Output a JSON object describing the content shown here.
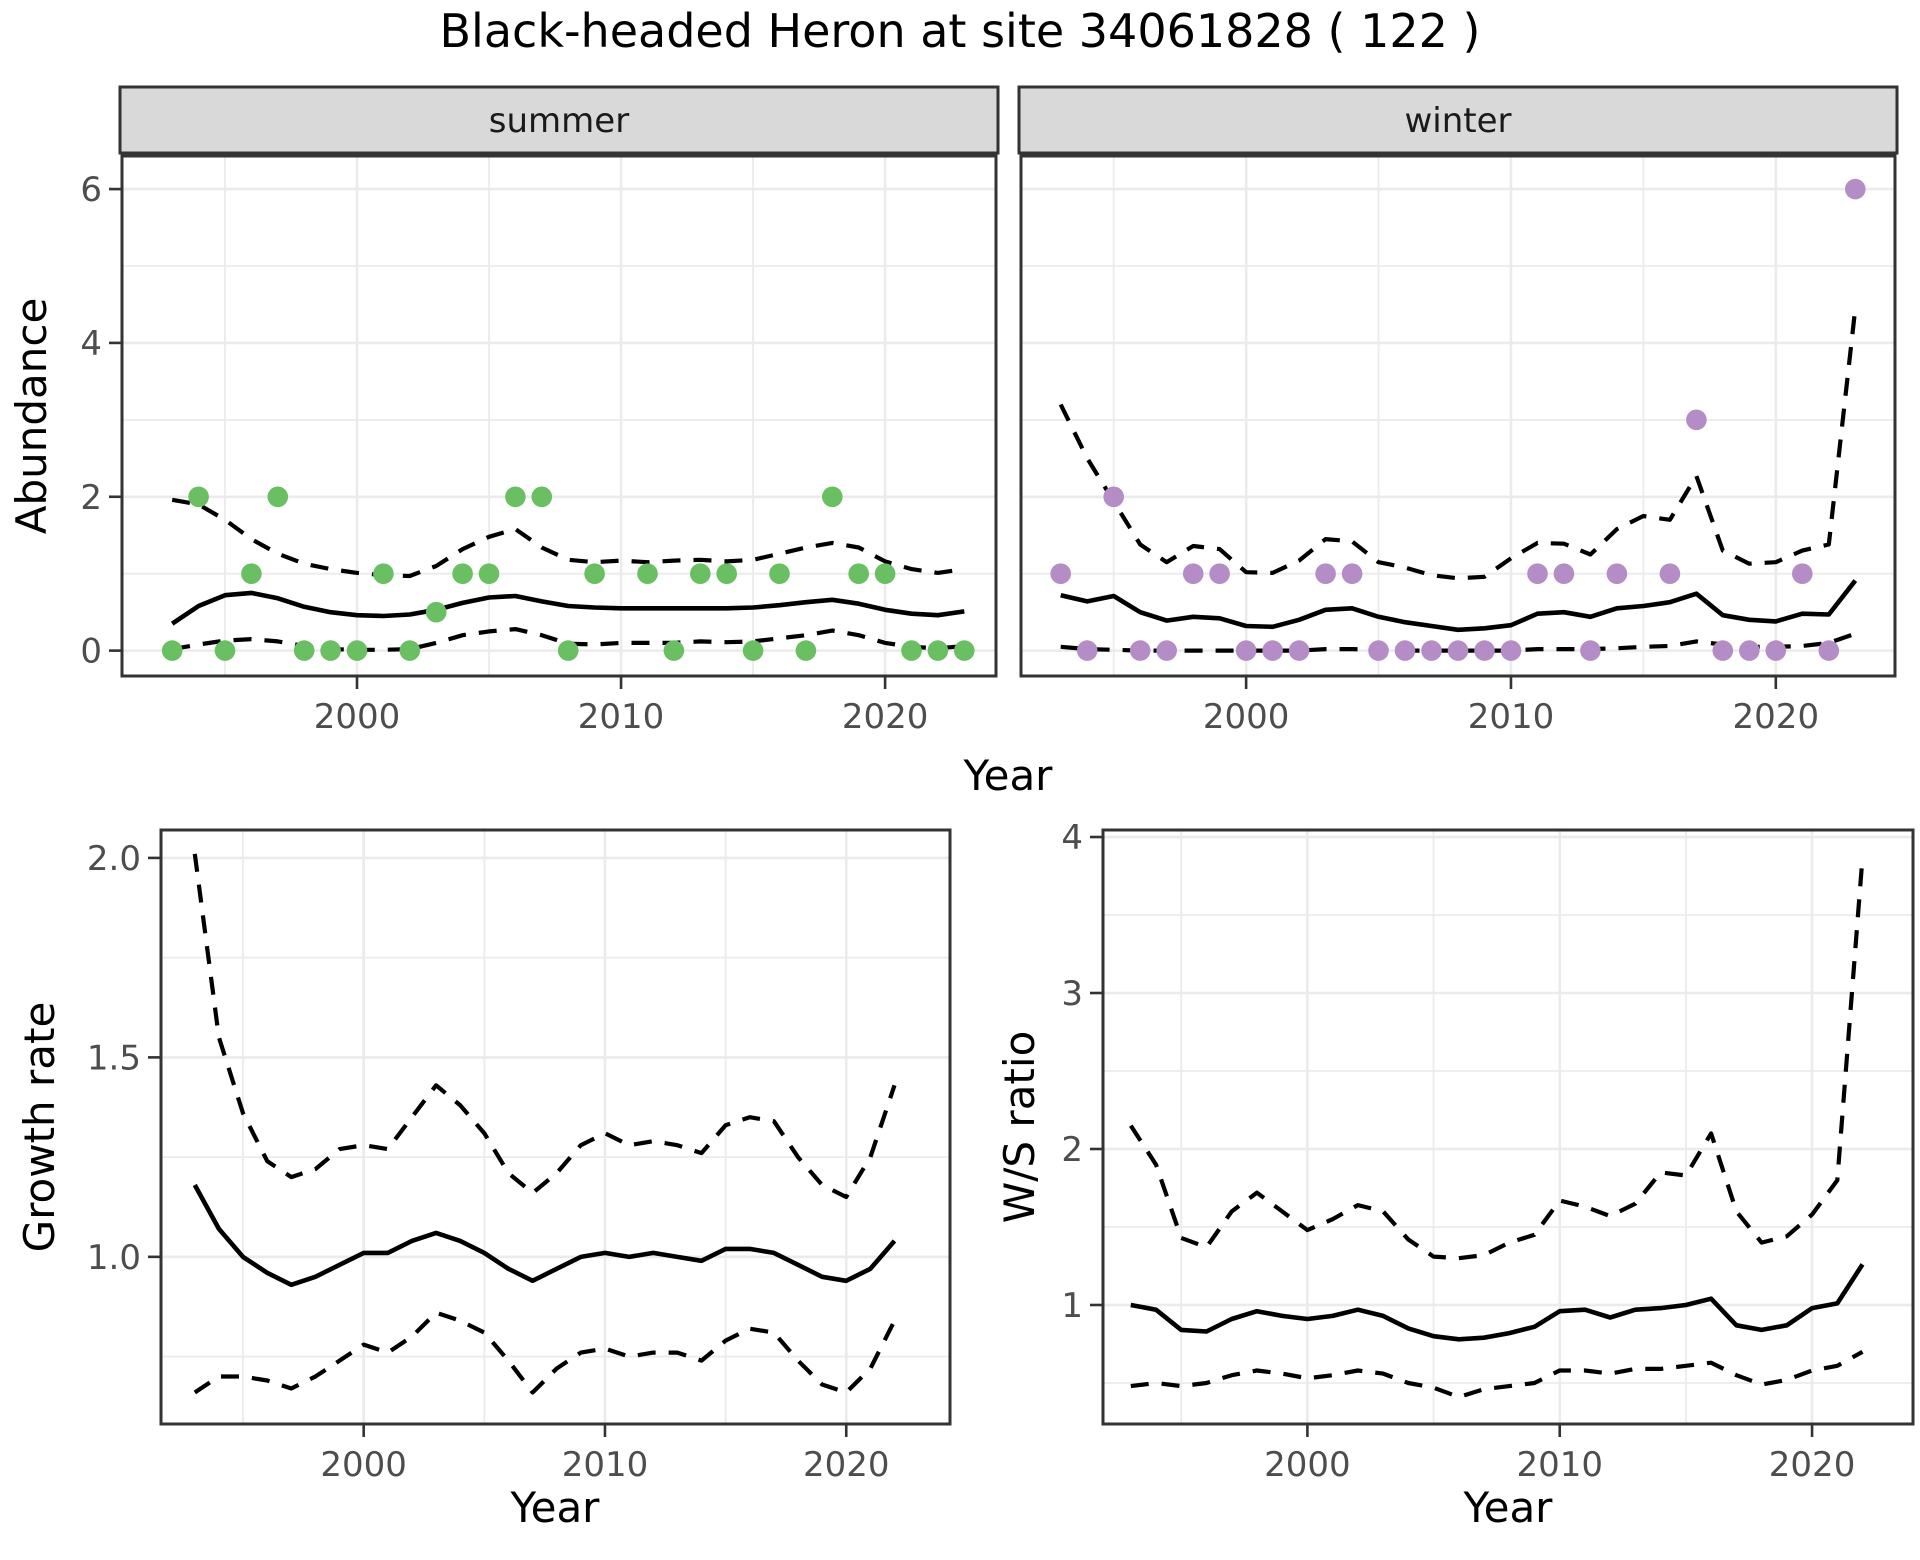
{
  "title": "Black-headed Heron at site 34061828 ( 122 )",
  "colors": {
    "summer_point": "#6abf63",
    "winter_point": "#b48dc7",
    "line": "#000000",
    "grid": "#ebebeb",
    "panel_border": "#333333",
    "strip_fill": "#d9d9d9",
    "strip_text": "#1a1a1a",
    "tick_text": "#4d4d4d",
    "axis_title_text": "#000000",
    "background": "#ffffff"
  },
  "chart_data": [
    {
      "type": "line",
      "name": "summer-abundance",
      "strip": "summer",
      "xlabel": "Year",
      "ylabel": "Abundance",
      "legend_position": "none",
      "grid": true,
      "xlim": [
        1991.1,
        2024.2
      ],
      "ylim": [
        -0.33,
        6.43
      ],
      "xticks": [
        2000,
        2010,
        2020
      ],
      "xtick_labels": [
        "2000",
        "2010",
        "2020"
      ],
      "xminor": [
        1995,
        2005,
        2015
      ],
      "yticks": [
        0,
        2,
        4,
        6
      ],
      "ytick_labels": [
        "0",
        "2",
        "4",
        "6"
      ],
      "yminor": [
        1,
        3,
        5
      ],
      "years": [
        1993,
        1994,
        1995,
        1996,
        1997,
        1998,
        1999,
        2000,
        2001,
        2002,
        2003,
        2004,
        2005,
        2006,
        2007,
        2008,
        2009,
        2010,
        2011,
        2012,
        2013,
        2014,
        2015,
        2016,
        2017,
        2018,
        2019,
        2020,
        2021,
        2022,
        2023
      ],
      "series": [
        {
          "name": "mean",
          "style": "solid",
          "values": [
            0.35,
            0.58,
            0.72,
            0.75,
            0.68,
            0.57,
            0.5,
            0.46,
            0.45,
            0.47,
            0.53,
            0.62,
            0.69,
            0.71,
            0.64,
            0.58,
            0.56,
            0.55,
            0.55,
            0.55,
            0.55,
            0.55,
            0.56,
            0.59,
            0.63,
            0.66,
            0.61,
            0.53,
            0.48,
            0.46,
            0.51
          ]
        },
        {
          "name": "upper-ci",
          "style": "dashed",
          "values": [
            1.96,
            1.9,
            1.7,
            1.45,
            1.26,
            1.13,
            1.06,
            1.01,
            0.98,
            0.97,
            1.1,
            1.32,
            1.48,
            1.58,
            1.34,
            1.18,
            1.15,
            1.17,
            1.15,
            1.17,
            1.18,
            1.16,
            1.18,
            1.26,
            1.34,
            1.4,
            1.34,
            1.16,
            1.06,
            1.01,
            1.06
          ]
        },
        {
          "name": "lower-ci",
          "style": "dashed",
          "values": [
            0.02,
            0.08,
            0.13,
            0.15,
            0.12,
            0.06,
            0.02,
            0.01,
            0.01,
            0.02,
            0.1,
            0.2,
            0.25,
            0.28,
            0.2,
            0.09,
            0.08,
            0.1,
            0.1,
            0.1,
            0.12,
            0.11,
            0.12,
            0.16,
            0.2,
            0.26,
            0.2,
            0.1,
            0.05,
            0.03,
            0.06
          ]
        }
      ],
      "points": [
        [
          1993,
          0
        ],
        [
          1994,
          2
        ],
        [
          1995,
          0
        ],
        [
          1996,
          1
        ],
        [
          1997,
          2
        ],
        [
          1998,
          0
        ],
        [
          1999,
          0
        ],
        [
          2000,
          0
        ],
        [
          2001,
          1
        ],
        [
          2002,
          0
        ],
        [
          2003,
          0.5
        ],
        [
          2004,
          1
        ],
        [
          2005,
          1
        ],
        [
          2006,
          2
        ],
        [
          2007,
          2
        ],
        [
          2008,
          0
        ],
        [
          2009,
          1
        ],
        [
          2011,
          1
        ],
        [
          2012,
          0
        ],
        [
          2013,
          1
        ],
        [
          2014,
          1
        ],
        [
          2015,
          0
        ],
        [
          2016,
          1
        ],
        [
          2017,
          0
        ],
        [
          2018,
          2
        ],
        [
          2019,
          1
        ],
        [
          2020,
          1
        ],
        [
          2021,
          0
        ],
        [
          2022,
          0
        ],
        [
          2023,
          0
        ]
      ],
      "point_color": "#6abf63"
    },
    {
      "type": "line",
      "name": "winter-abundance",
      "strip": "winter",
      "xlabel": "Year",
      "ylabel": "",
      "legend_position": "none",
      "grid": true,
      "xlim": [
        1991.5,
        2024.5
      ],
      "ylim": [
        -0.33,
        6.43
      ],
      "xticks": [
        2000,
        2010,
        2020
      ],
      "xtick_labels": [
        "2000",
        "2010",
        "2020"
      ],
      "xminor": [
        1995,
        2005,
        2015
      ],
      "yticks": [
        0,
        2,
        4,
        6
      ],
      "ytick_labels": [],
      "yminor": [
        1,
        3,
        5
      ],
      "years": [
        1993,
        1994,
        1995,
        1996,
        1997,
        1998,
        1999,
        2000,
        2001,
        2002,
        2003,
        2004,
        2005,
        2006,
        2007,
        2008,
        2009,
        2010,
        2011,
        2012,
        2013,
        2014,
        2015,
        2016,
        2017,
        2018,
        2019,
        2020,
        2021,
        2022,
        2023
      ],
      "series": [
        {
          "name": "mean",
          "style": "solid",
          "values": [
            0.72,
            0.64,
            0.71,
            0.5,
            0.39,
            0.44,
            0.42,
            0.32,
            0.31,
            0.4,
            0.53,
            0.55,
            0.44,
            0.37,
            0.32,
            0.27,
            0.29,
            0.33,
            0.48,
            0.5,
            0.44,
            0.55,
            0.58,
            0.63,
            0.74,
            0.46,
            0.4,
            0.38,
            0.48,
            0.47,
            0.91
          ]
        },
        {
          "name": "upper-ci",
          "style": "dashed",
          "values": [
            3.2,
            2.5,
            1.94,
            1.38,
            1.15,
            1.36,
            1.32,
            1.02,
            1.01,
            1.17,
            1.45,
            1.42,
            1.15,
            1.08,
            0.98,
            0.94,
            0.96,
            1.2,
            1.4,
            1.39,
            1.25,
            1.58,
            1.75,
            1.7,
            2.27,
            1.3,
            1.13,
            1.15,
            1.3,
            1.38,
            4.45
          ]
        },
        {
          "name": "lower-ci",
          "style": "dashed",
          "values": [
            0.05,
            0.02,
            0.01,
            0,
            0,
            0,
            0,
            0,
            0,
            0,
            0.02,
            0.02,
            0.01,
            0,
            0,
            0,
            0,
            0,
            0.02,
            0.02,
            0.02,
            0.03,
            0.05,
            0.06,
            0.12,
            0.08,
            0.05,
            0.05,
            0.06,
            0.1,
            0.22
          ]
        }
      ],
      "points": [
        [
          1993,
          1
        ],
        [
          1994,
          0
        ],
        [
          1995,
          2
        ],
        [
          1996,
          0
        ],
        [
          1997,
          0
        ],
        [
          1998,
          1
        ],
        [
          1999,
          1
        ],
        [
          2000,
          0
        ],
        [
          2001,
          0
        ],
        [
          2002,
          0
        ],
        [
          2003,
          1
        ],
        [
          2004,
          1
        ],
        [
          2005,
          0
        ],
        [
          2006,
          0
        ],
        [
          2007,
          0
        ],
        [
          2008,
          0
        ],
        [
          2009,
          0
        ],
        [
          2010,
          0
        ],
        [
          2011,
          1
        ],
        [
          2012,
          1
        ],
        [
          2013,
          0
        ],
        [
          2014,
          1
        ],
        [
          2016,
          1
        ],
        [
          2017,
          3
        ],
        [
          2018,
          0
        ],
        [
          2019,
          0
        ],
        [
          2020,
          0
        ],
        [
          2021,
          1
        ],
        [
          2022,
          0
        ],
        [
          2023,
          6
        ]
      ],
      "point_color": "#b48dc7"
    },
    {
      "type": "line",
      "name": "growth-rate",
      "strip": "",
      "xlabel": "Year",
      "ylabel": "Growth rate",
      "legend_position": "none",
      "grid": true,
      "xlim": [
        1991.6,
        2024.3
      ],
      "ylim": [
        0.581,
        2.07
      ],
      "xticks": [
        2000,
        2010,
        2020
      ],
      "xtick_labels": [
        "2000",
        "2010",
        "2020"
      ],
      "xminor": [
        1995,
        2005,
        2015
      ],
      "yticks": [
        1.0,
        1.5,
        2.0
      ],
      "ytick_labels": [
        "1.0",
        "1.5",
        "2.0"
      ],
      "yminor": [
        0.75,
        1.25,
        1.75
      ],
      "years": [
        1993,
        1994,
        1995,
        1996,
        1997,
        1998,
        1999,
        2000,
        2001,
        2002,
        2003,
        2004,
        2005,
        2006,
        2007,
        2008,
        2009,
        2010,
        2011,
        2012,
        2013,
        2014,
        2015,
        2016,
        2017,
        2018,
        2019,
        2020,
        2021,
        2022
      ],
      "series": [
        {
          "name": "mean",
          "style": "solid",
          "values": [
            1.18,
            1.07,
            1.0,
            0.96,
            0.93,
            0.95,
            0.98,
            1.01,
            1.01,
            1.04,
            1.06,
            1.04,
            1.01,
            0.97,
            0.94,
            0.97,
            1.0,
            1.01,
            1.0,
            1.01,
            1.0,
            0.99,
            1.02,
            1.02,
            1.01,
            0.98,
            0.95,
            0.94,
            0.97,
            1.04
          ]
        },
        {
          "name": "upper-ci",
          "style": "dashed",
          "values": [
            2.01,
            1.55,
            1.36,
            1.24,
            1.2,
            1.22,
            1.27,
            1.28,
            1.27,
            1.35,
            1.43,
            1.38,
            1.31,
            1.21,
            1.16,
            1.21,
            1.28,
            1.31,
            1.28,
            1.29,
            1.28,
            1.26,
            1.33,
            1.35,
            1.34,
            1.25,
            1.18,
            1.15,
            1.25,
            1.43
          ]
        },
        {
          "name": "lower-ci",
          "style": "dashed",
          "values": [
            0.66,
            0.7,
            0.7,
            0.69,
            0.67,
            0.7,
            0.74,
            0.78,
            0.76,
            0.8,
            0.86,
            0.84,
            0.81,
            0.74,
            0.66,
            0.72,
            0.76,
            0.77,
            0.75,
            0.76,
            0.76,
            0.74,
            0.79,
            0.82,
            0.81,
            0.74,
            0.68,
            0.66,
            0.72,
            0.84
          ]
        }
      ],
      "points": [],
      "point_color": ""
    },
    {
      "type": "line",
      "name": "ws-ratio",
      "strip": "",
      "xlabel": "Year",
      "ylabel": "W/S ratio",
      "legend_position": "none",
      "grid": true,
      "xlim": [
        1991.9,
        2024.0
      ],
      "ylim": [
        0.237,
        4.045
      ],
      "xticks": [
        2000,
        2010,
        2020
      ],
      "xtick_labels": [
        "2000",
        "2010",
        "2020"
      ],
      "xminor": [
        1995,
        2005,
        2015
      ],
      "yticks": [
        1,
        2,
        3,
        4
      ],
      "ytick_labels": [
        "1",
        "2",
        "3",
        "4"
      ],
      "yminor": [
        0.5,
        1.5,
        2.5,
        3.5
      ],
      "years": [
        1993,
        1994,
        1995,
        1996,
        1997,
        1998,
        1999,
        2000,
        2001,
        2002,
        2003,
        2004,
        2005,
        2006,
        2007,
        2008,
        2009,
        2010,
        2011,
        2012,
        2013,
        2014,
        2015,
        2016,
        2017,
        2018,
        2019,
        2020,
        2021,
        2022
      ],
      "series": [
        {
          "name": "mean",
          "style": "solid",
          "values": [
            1.0,
            0.97,
            0.84,
            0.83,
            0.91,
            0.96,
            0.93,
            0.91,
            0.93,
            0.97,
            0.93,
            0.85,
            0.8,
            0.78,
            0.79,
            0.82,
            0.86,
            0.96,
            0.97,
            0.92,
            0.97,
            0.98,
            1.0,
            1.04,
            0.87,
            0.84,
            0.87,
            0.98,
            1.01,
            1.26
          ]
        },
        {
          "name": "upper-ci",
          "style": "dashed",
          "values": [
            2.15,
            1.9,
            1.43,
            1.37,
            1.6,
            1.72,
            1.6,
            1.48,
            1.55,
            1.64,
            1.6,
            1.42,
            1.31,
            1.3,
            1.32,
            1.4,
            1.45,
            1.67,
            1.63,
            1.57,
            1.65,
            1.85,
            1.83,
            2.1,
            1.6,
            1.4,
            1.44,
            1.58,
            1.8,
            3.87
          ]
        },
        {
          "name": "lower-ci",
          "style": "dashed",
          "values": [
            0.48,
            0.5,
            0.48,
            0.5,
            0.55,
            0.58,
            0.56,
            0.53,
            0.55,
            0.58,
            0.56,
            0.5,
            0.47,
            0.41,
            0.46,
            0.48,
            0.5,
            0.58,
            0.58,
            0.56,
            0.59,
            0.59,
            0.61,
            0.63,
            0.55,
            0.49,
            0.52,
            0.58,
            0.61,
            0.7
          ]
        }
      ],
      "points": [],
      "point_color": ""
    }
  ],
  "shared_axis_labels": {
    "top_x": "Year",
    "top_y": "Abundance"
  }
}
